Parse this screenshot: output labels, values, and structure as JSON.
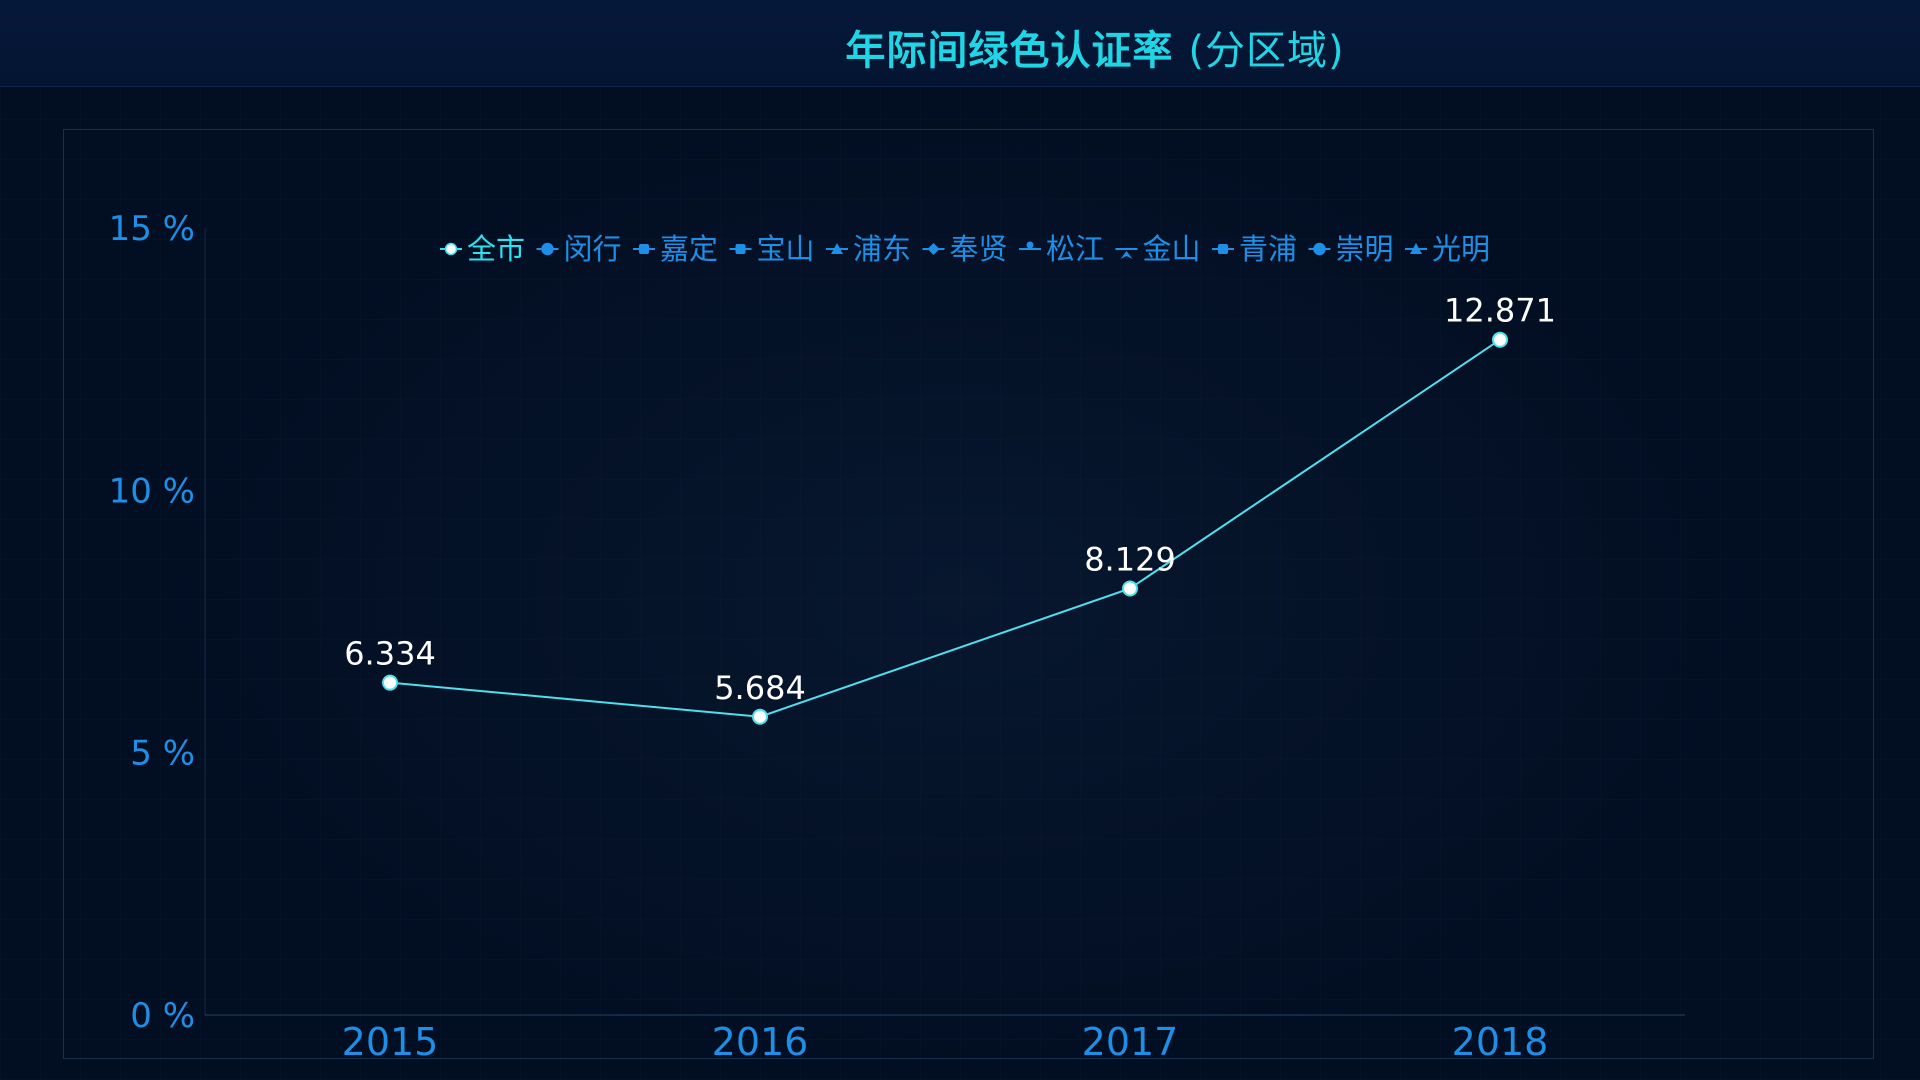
{
  "header": {
    "title_main": "年际间绿色认证率",
    "title_sub": "(分区域)"
  },
  "chart_data": {
    "type": "line",
    "title": "年际间绿色认证率 (分区域)",
    "categories": [
      "2015",
      "2016",
      "2017",
      "2018"
    ],
    "y_ticks": [
      "0 %",
      "5 %",
      "10 %",
      "15 %"
    ],
    "ylim": [
      0,
      15
    ],
    "legend": {
      "placement": "top-center",
      "items": [
        "全市",
        "闵行",
        "嘉定",
        "宝山",
        "浦东",
        "奉贤",
        "松江",
        "金山",
        "青浦",
        "崇明",
        "光明"
      ]
    },
    "series": [
      {
        "name": "全市",
        "values": [
          6.334,
          5.684,
          8.129,
          12.871
        ],
        "labels": [
          "6.334",
          "5.684",
          "8.129",
          "12.871"
        ]
      }
    ],
    "colors": {
      "line": "#4ee0ec",
      "point_fill": "#ffffff",
      "tick": "#1e8fe6",
      "title": "#1fd6e6",
      "legend_active": "#2fe0ee",
      "legend_inactive": "#1e8fe6"
    },
    "grid": false
  }
}
